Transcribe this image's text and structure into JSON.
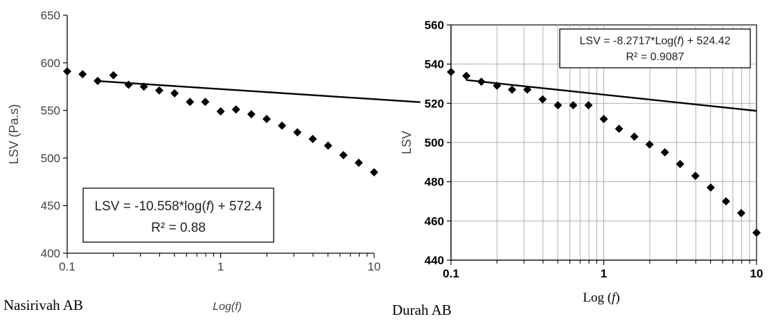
{
  "chart_data": [
    {
      "type": "scatter",
      "caption": "Nasirivah AB",
      "xlabel": "Log(f)",
      "ylabel": "LSV (Pa.s)",
      "x_scale": "log",
      "xlim": [
        0.1,
        10
      ],
      "ylim": [
        400,
        650
      ],
      "x_ticks": [
        "0.1",
        "1",
        "10"
      ],
      "y_ticks": [
        "650",
        "600",
        "550",
        "500",
        "450",
        "400"
      ],
      "grid": false,
      "series": [
        {
          "x": [
            0.1,
            0.126,
            0.158,
            0.2,
            0.251,
            0.316,
            0.398,
            0.501,
            0.631,
            0.794,
            1.0,
            1.259,
            1.585,
            1.995,
            2.512,
            3.162,
            3.981,
            5.012,
            6.31,
            7.943,
            10.0
          ],
          "y": [
            591,
            588,
            581,
            587,
            577,
            575,
            571,
            568,
            559,
            559,
            549,
            551,
            546,
            541,
            534,
            527,
            520,
            513,
            503,
            495,
            485
          ]
        }
      ],
      "trendline": {
        "slope": -10.558,
        "intercept": 572.4,
        "x_range": [
          0.16,
          20
        ]
      },
      "annotation": {
        "equation": "LSV = -10.558*log(f) + 572.4",
        "r2": "R² = 0.88",
        "placement": "bottom-left"
      }
    },
    {
      "type": "scatter",
      "caption": "Durah AB",
      "xlabel": "Log (f)",
      "ylabel": "LSV",
      "x_scale": "log",
      "xlim": [
        0.1,
        10
      ],
      "ylim": [
        440,
        560
      ],
      "x_ticks": [
        "0.1",
        "1",
        "10"
      ],
      "y_ticks": [
        "560",
        "540",
        "520",
        "500",
        "480",
        "460",
        "440"
      ],
      "grid": true,
      "series": [
        {
          "x": [
            0.1,
            0.126,
            0.158,
            0.2,
            0.251,
            0.316,
            0.398,
            0.501,
            0.631,
            0.794,
            1.0,
            1.259,
            1.585,
            1.995,
            2.512,
            3.162,
            3.981,
            5.012,
            6.31,
            7.943,
            10.0
          ],
          "y": [
            536,
            534,
            531,
            529,
            527,
            527,
            522,
            519,
            519,
            519,
            512,
            507,
            503,
            499,
            495,
            489,
            483,
            477,
            470,
            464,
            454
          ]
        }
      ],
      "trendline": {
        "slope": -8.2717,
        "intercept": 524.42,
        "x_range": [
          0.126,
          10
        ]
      },
      "annotation": {
        "equation": "LSV = -8.2717*Log(f) + 524.42",
        "r2": "R² = 0.9087",
        "placement": "top-right"
      }
    }
  ]
}
